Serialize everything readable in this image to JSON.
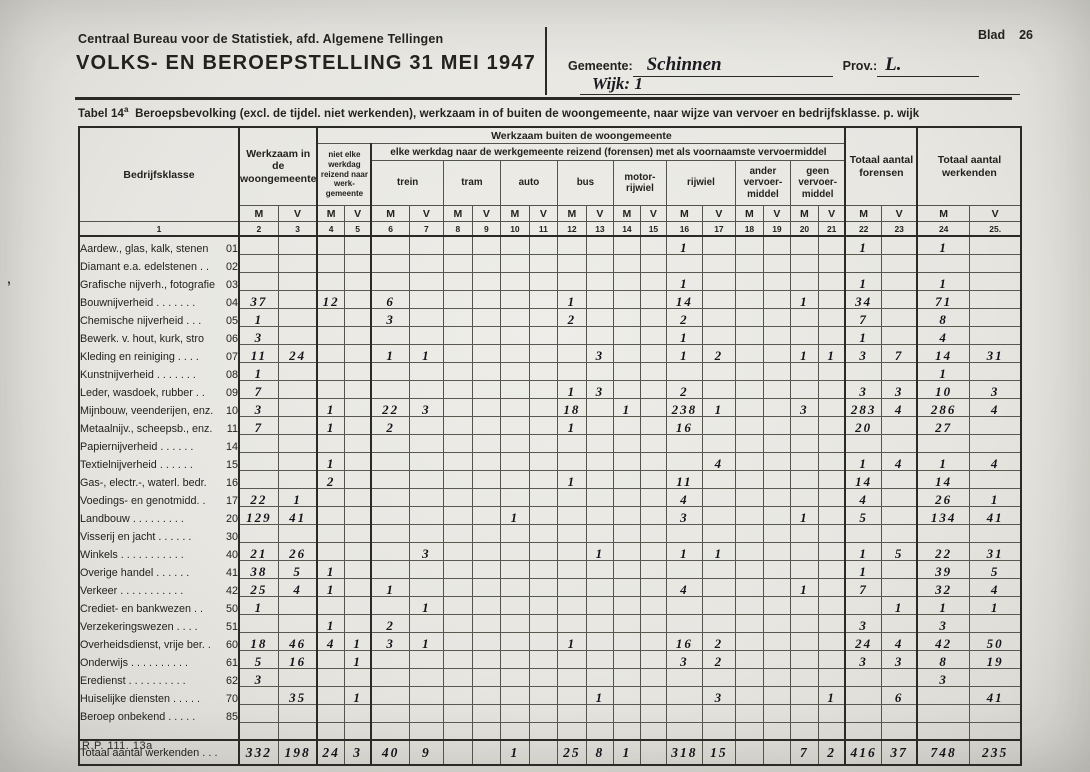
{
  "header": {
    "bureau_line": "Centraal Bureau voor de Statistiek, afd. Algemene Tellingen",
    "title": "VOLKS- EN BEROEPSTELLING 31 MEI 1947",
    "blad_label": "Blad",
    "blad_value": "26",
    "gemeente_label": "Gemeente:",
    "gemeente_value": "Schinnen",
    "prov_label": "Prov.:",
    "prov_value": "L.",
    "wijk_label": "Wijk:",
    "wijk_value": "1"
  },
  "caption": {
    "prefix": "Tabel 14",
    "sup": "a",
    "text": "Beroepsbevolking (excl. de tijdel. niet werkenden), werkzaam in of buiten de woongemeente, naar wijze van vervoer en bedrijfsklasse. p. wijk"
  },
  "table": {
    "col1_header": "Bedrijfsklasse",
    "group_woon": "Werkzaam in de woongemeente",
    "group_buiten": "Werkzaam buiten de woongemeente",
    "group_niet_elke": "niet elke werkdag reizend naar werk-gemeente",
    "group_forensen_band": "elke werkdag naar de werkgemeente reizend (forensen) met als voornaamste vervoermiddel",
    "total_forensen": "Totaal aantal forensen",
    "total_werkenden": "Totaal aantal werkenden",
    "transport": [
      "trein",
      "tram",
      "auto",
      "bus",
      "motor-rijwiel",
      "rijwiel",
      "ander vervoer-middel",
      "geen vervoer-middel"
    ],
    "mv": [
      "M",
      "V"
    ],
    "col_numbers": [
      "1",
      "2",
      "3",
      "4",
      "5",
      "6",
      "7",
      "8",
      "9",
      "10",
      "11",
      "12",
      "13",
      "14",
      "15",
      "16",
      "17",
      "18",
      "19",
      "20",
      "21",
      "22",
      "23",
      "24",
      "25."
    ],
    "rows": [
      {
        "code": "01",
        "label": "Aardew., glas, kalk, stenen",
        "values": [
          "",
          "",
          "",
          "",
          "",
          "",
          "",
          "",
          "",
          "",
          "",
          "",
          "",
          "",
          "1",
          "",
          "",
          "",
          "",
          "",
          "1",
          "",
          "1",
          ""
        ]
      },
      {
        "code": "02",
        "label": "Diamant e.a. edelstenen . .",
        "values": [
          "",
          "",
          "",
          "",
          "",
          "",
          "",
          "",
          "",
          "",
          "",
          "",
          "",
          "",
          "",
          "",
          "",
          "",
          "",
          "",
          "",
          "",
          "",
          ""
        ]
      },
      {
        "code": "03",
        "label": "Grafische nijverh., fotografie",
        "values": [
          "",
          "",
          "",
          "",
          "",
          "",
          "",
          "",
          "",
          "",
          "",
          "",
          "",
          "",
          "1",
          "",
          "",
          "",
          "",
          "",
          "1",
          "",
          "1",
          ""
        ]
      },
      {
        "code": "04",
        "label": "Bouwnijverheid . . . . . . .",
        "values": [
          "37",
          "",
          "12",
          "",
          "6",
          "",
          "",
          "",
          "",
          "",
          "1",
          "",
          "",
          "",
          "14",
          "",
          "",
          "",
          "1",
          "",
          "34",
          "",
          "71",
          ""
        ]
      },
      {
        "code": "05",
        "label": "Chemische nijverheid . . .",
        "values": [
          "1",
          "",
          "",
          "",
          "3",
          "",
          "",
          "",
          "",
          "",
          "2",
          "",
          "",
          "",
          "2",
          "",
          "",
          "",
          "",
          "",
          "7",
          "",
          "8",
          ""
        ]
      },
      {
        "code": "06",
        "label": "Bewerk. v. hout, kurk, stro",
        "values": [
          "3",
          "",
          "",
          "",
          "",
          "",
          "",
          "",
          "",
          "",
          "",
          "",
          "",
          "",
          "1",
          "",
          "",
          "",
          "",
          "",
          "1",
          "",
          "4",
          ""
        ]
      },
      {
        "code": "07",
        "label": "Kleding en reiniging . . . .",
        "values": [
          "11",
          "24",
          "",
          "",
          "1",
          "1",
          "",
          "",
          "",
          "",
          "",
          "3",
          "",
          "",
          "1",
          "2",
          "",
          "",
          "1",
          "1",
          "3",
          "7",
          "14",
          "31"
        ]
      },
      {
        "code": "08",
        "label": "Kunstnijverheid . . . . . . .",
        "values": [
          "1",
          "",
          "",
          "",
          "",
          "",
          "",
          "",
          "",
          "",
          "",
          "",
          "",
          "",
          "",
          "",
          "",
          "",
          "",
          "",
          "",
          "",
          "1",
          ""
        ]
      },
      {
        "code": "09",
        "label": "Leder, wasdoek, rubber . .",
        "values": [
          "7",
          "",
          "",
          "",
          "",
          "",
          "",
          "",
          "",
          "",
          "1",
          "3",
          "",
          "",
          "2",
          "",
          "",
          "",
          "",
          "",
          "3",
          "3",
          "10",
          "3"
        ]
      },
      {
        "code": "10",
        "label": "Mijnbouw, veenderijen, enz.",
        "values": [
          "3",
          "",
          "1",
          "",
          "22",
          "3",
          "",
          "",
          "",
          "",
          "18",
          "",
          "1",
          "",
          "238",
          "1",
          "",
          "",
          "3",
          "",
          "283",
          "4",
          "286",
          "4"
        ]
      },
      {
        "code": "11",
        "label": "Metaalnijv., scheepsb., enz.",
        "values": [
          "7",
          "",
          "1",
          "",
          "2",
          "",
          "",
          "",
          "",
          "",
          "1",
          "",
          "",
          "",
          "16",
          "",
          "",
          "",
          "",
          "",
          "20",
          "",
          "27",
          ""
        ]
      },
      {
        "code": "14",
        "label": "Papiernijverheid . . . . . .",
        "values": [
          "",
          "",
          "",
          "",
          "",
          "",
          "",
          "",
          "",
          "",
          "",
          "",
          "",
          "",
          "",
          "",
          "",
          "",
          "",
          "",
          "",
          "",
          "",
          ""
        ]
      },
      {
        "code": "15",
        "label": "Textielnijverheid . . . . . .",
        "values": [
          "",
          "",
          "1",
          "",
          "",
          "",
          "",
          "",
          "",
          "",
          "",
          "",
          "",
          "",
          "",
          "4",
          "",
          "",
          "",
          "",
          "1",
          "4",
          "1",
          "4"
        ]
      },
      {
        "code": "16",
        "label": "Gas-, electr.-, waterl. bedr.",
        "values": [
          "",
          "",
          "2",
          "",
          "",
          "",
          "",
          "",
          "",
          "",
          "1",
          "",
          "",
          "",
          "11",
          "",
          "",
          "",
          "",
          "",
          "14",
          "",
          "14",
          ""
        ]
      },
      {
        "code": "17",
        "label": "Voedings- en genotmidd. .",
        "values": [
          "22",
          "1",
          "",
          "",
          "",
          "",
          "",
          "",
          "",
          "",
          "",
          "",
          "",
          "",
          "4",
          "",
          "",
          "",
          "",
          "",
          "4",
          "",
          "26",
          "1"
        ]
      },
      {
        "code": "20",
        "label": "Landbouw . . . . . . . . .",
        "values": [
          "129",
          "41",
          "",
          "",
          "",
          "",
          "",
          "",
          "1",
          "",
          "",
          "",
          "",
          "",
          "3",
          "",
          "",
          "",
          "1",
          "",
          "5",
          "",
          "134",
          "41"
        ]
      },
      {
        "code": "30",
        "label": "Visserij en jacht . . . . . .",
        "values": [
          "",
          "",
          "",
          "",
          "",
          "",
          "",
          "",
          "",
          "",
          "",
          "",
          "",
          "",
          "",
          "",
          "",
          "",
          "",
          "",
          "",
          "",
          "",
          ""
        ]
      },
      {
        "code": "40",
        "label": "Winkels . . . . . . . . . . .",
        "values": [
          "21",
          "26",
          "",
          "",
          "",
          "3",
          "",
          "",
          "",
          "",
          "",
          "1",
          "",
          "",
          "1",
          "1",
          "",
          "",
          "",
          "",
          "1",
          "5",
          "22",
          "31"
        ]
      },
      {
        "code": "41",
        "label": "Overige handel . . . . . .",
        "values": [
          "38",
          "5",
          "1",
          "",
          "",
          "",
          "",
          "",
          "",
          "",
          "",
          "",
          "",
          "",
          "",
          "",
          "",
          "",
          "",
          "",
          "1",
          "",
          "39",
          "5"
        ]
      },
      {
        "code": "42",
        "label": "Verkeer . . . . . . . . . . .",
        "values": [
          "25",
          "4",
          "1",
          "",
          "1",
          "",
          "",
          "",
          "",
          "",
          "",
          "",
          "",
          "",
          "4",
          "",
          "",
          "",
          "1",
          "",
          "7",
          "",
          "32",
          "4"
        ]
      },
      {
        "code": "50",
        "label": "Crediet- en bankwezen . .",
        "values": [
          "1",
          "",
          "",
          "",
          "",
          "1",
          "",
          "",
          "",
          "",
          "",
          "",
          "",
          "",
          "",
          "",
          "",
          "",
          "",
          "",
          "",
          "1",
          "1",
          "1"
        ]
      },
      {
        "code": "51",
        "label": "Verzekeringswezen . . . .",
        "values": [
          "",
          "",
          "1",
          "",
          "2",
          "",
          "",
          "",
          "",
          "",
          "",
          "",
          "",
          "",
          "",
          "",
          "",
          "",
          "",
          "",
          "3",
          "",
          "3",
          ""
        ]
      },
      {
        "code": "60",
        "label": "Overheidsdienst, vrije ber. .",
        "values": [
          "18",
          "46",
          "4",
          "1",
          "3",
          "1",
          "",
          "",
          "",
          "",
          "1",
          "",
          "",
          "",
          "16",
          "2",
          "",
          "",
          "",
          "",
          "24",
          "4",
          "42",
          "50"
        ]
      },
      {
        "code": "61",
        "label": "Onderwijs . . . . . . . . . .",
        "values": [
          "5",
          "16",
          "",
          "1",
          "",
          "",
          "",
          "",
          "",
          "",
          "",
          "",
          "",
          "",
          "3",
          "2",
          "",
          "",
          "",
          "",
          "3",
          "3",
          "8",
          "19"
        ]
      },
      {
        "code": "62",
        "label": "Eredienst . . . . . . . . . .",
        "values": [
          "3",
          "",
          "",
          "",
          "",
          "",
          "",
          "",
          "",
          "",
          "",
          "",
          "",
          "",
          "",
          "",
          "",
          "",
          "",
          "",
          "",
          "",
          "3",
          ""
        ]
      },
      {
        "code": "70",
        "label": "Huiselijke diensten . . . . .",
        "values": [
          "",
          "35",
          "",
          "1",
          "",
          "",
          "",
          "",
          "",
          "",
          "",
          "1",
          "",
          "",
          "",
          "3",
          "",
          "",
          "",
          "1",
          "",
          "6",
          "",
          "41"
        ]
      },
      {
        "code": "85",
        "label": "Beroep onbekend . . . . .",
        "values": [
          "",
          "",
          "",
          "",
          "",
          "",
          "",
          "",
          "",
          "",
          "",
          "",
          "",
          "",
          "",
          "",
          "",
          "",
          "",
          "",
          "",
          "",
          "",
          ""
        ]
      }
    ],
    "totals_row": {
      "label": "Totaal aantal werkenden . . .",
      "values": [
        "332",
        "198",
        "24",
        "3",
        "40",
        "9",
        "",
        "",
        "1",
        "",
        "25",
        "8",
        "1",
        "",
        "318",
        "15",
        "",
        "",
        "7",
        "2",
        "416",
        "37",
        "748",
        "235"
      ]
    }
  },
  "footer": {
    "form_number": "R.P. 111. 13a"
  }
}
